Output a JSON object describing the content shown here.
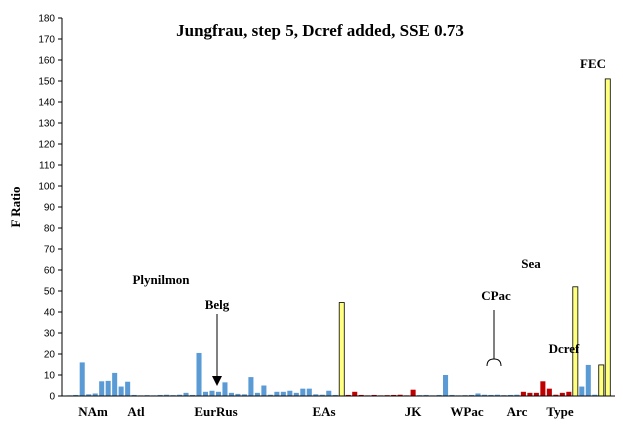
{
  "chart_data": {
    "type": "bar",
    "title": "Jungfrau, step 5, Dcref added, SSE 0.73",
    "ylabel": "F Ratio",
    "xlabel": "",
    "ylim": [
      0,
      180
    ],
    "yticks": [
      0,
      10,
      20,
      30,
      40,
      50,
      60,
      70,
      80,
      90,
      100,
      110,
      120,
      130,
      140,
      150,
      160,
      170,
      180
    ],
    "grid": false,
    "colors": {
      "blue": "#5B9BD5",
      "red": "#C00000",
      "yellow": "#FFFF80",
      "outline": "#000000"
    },
    "groups": [
      "NAm",
      "Atl",
      "EurRus",
      "EAs",
      "JK",
      "WPac",
      "Arc",
      "Type"
    ],
    "annotations": [
      "Plynilmon",
      "Belg",
      "CPac",
      "Sea",
      "Dcref",
      "FEC"
    ],
    "series": [
      {
        "color": "blue",
        "values": [
          0.3,
          0.5,
          16.0,
          0.8,
          1.2,
          7.0,
          7.2,
          11.0,
          4.5,
          6.8,
          0.5,
          0.3,
          0.4,
          0.3,
          0.5,
          0.6,
          0.4,
          0.6,
          1.5,
          0.5,
          20.5,
          2.0,
          2.5,
          2.0,
          6.5,
          1.5,
          1.0,
          0.8,
          9.0,
          1.5,
          5.0,
          0.6,
          2.0,
          2.0,
          2.5,
          1.5,
          3.5,
          3.5,
          0.8,
          0.6,
          2.5,
          0.5
        ]
      },
      {
        "color": "yellow",
        "values": [
          44.5
        ]
      },
      {
        "color": "red",
        "values": [
          0.5,
          2.0,
          0.5,
          0.3,
          0.5,
          0.3,
          0.4,
          0.5,
          0.6,
          0.3,
          3.0
        ]
      },
      {
        "color": "blue",
        "values": [
          0.4,
          0.5,
          0.3,
          0.5,
          10.0,
          0.5,
          0.3,
          0.4,
          0.5,
          1.2,
          0.6,
          0.5,
          0.6,
          0.4,
          0.5,
          0.6
        ]
      },
      {
        "color": "red",
        "values": [
          2.0,
          1.5,
          1.5,
          7.0,
          3.5,
          0.6,
          1.5,
          2.0
        ]
      },
      {
        "color": "yellow",
        "values": [
          52.0
        ]
      },
      {
        "color": "blue",
        "values": [
          4.5,
          14.8,
          0.6
        ]
      },
      {
        "color": "yellow",
        "values": [
          14.8,
          151.0
        ]
      }
    ]
  }
}
